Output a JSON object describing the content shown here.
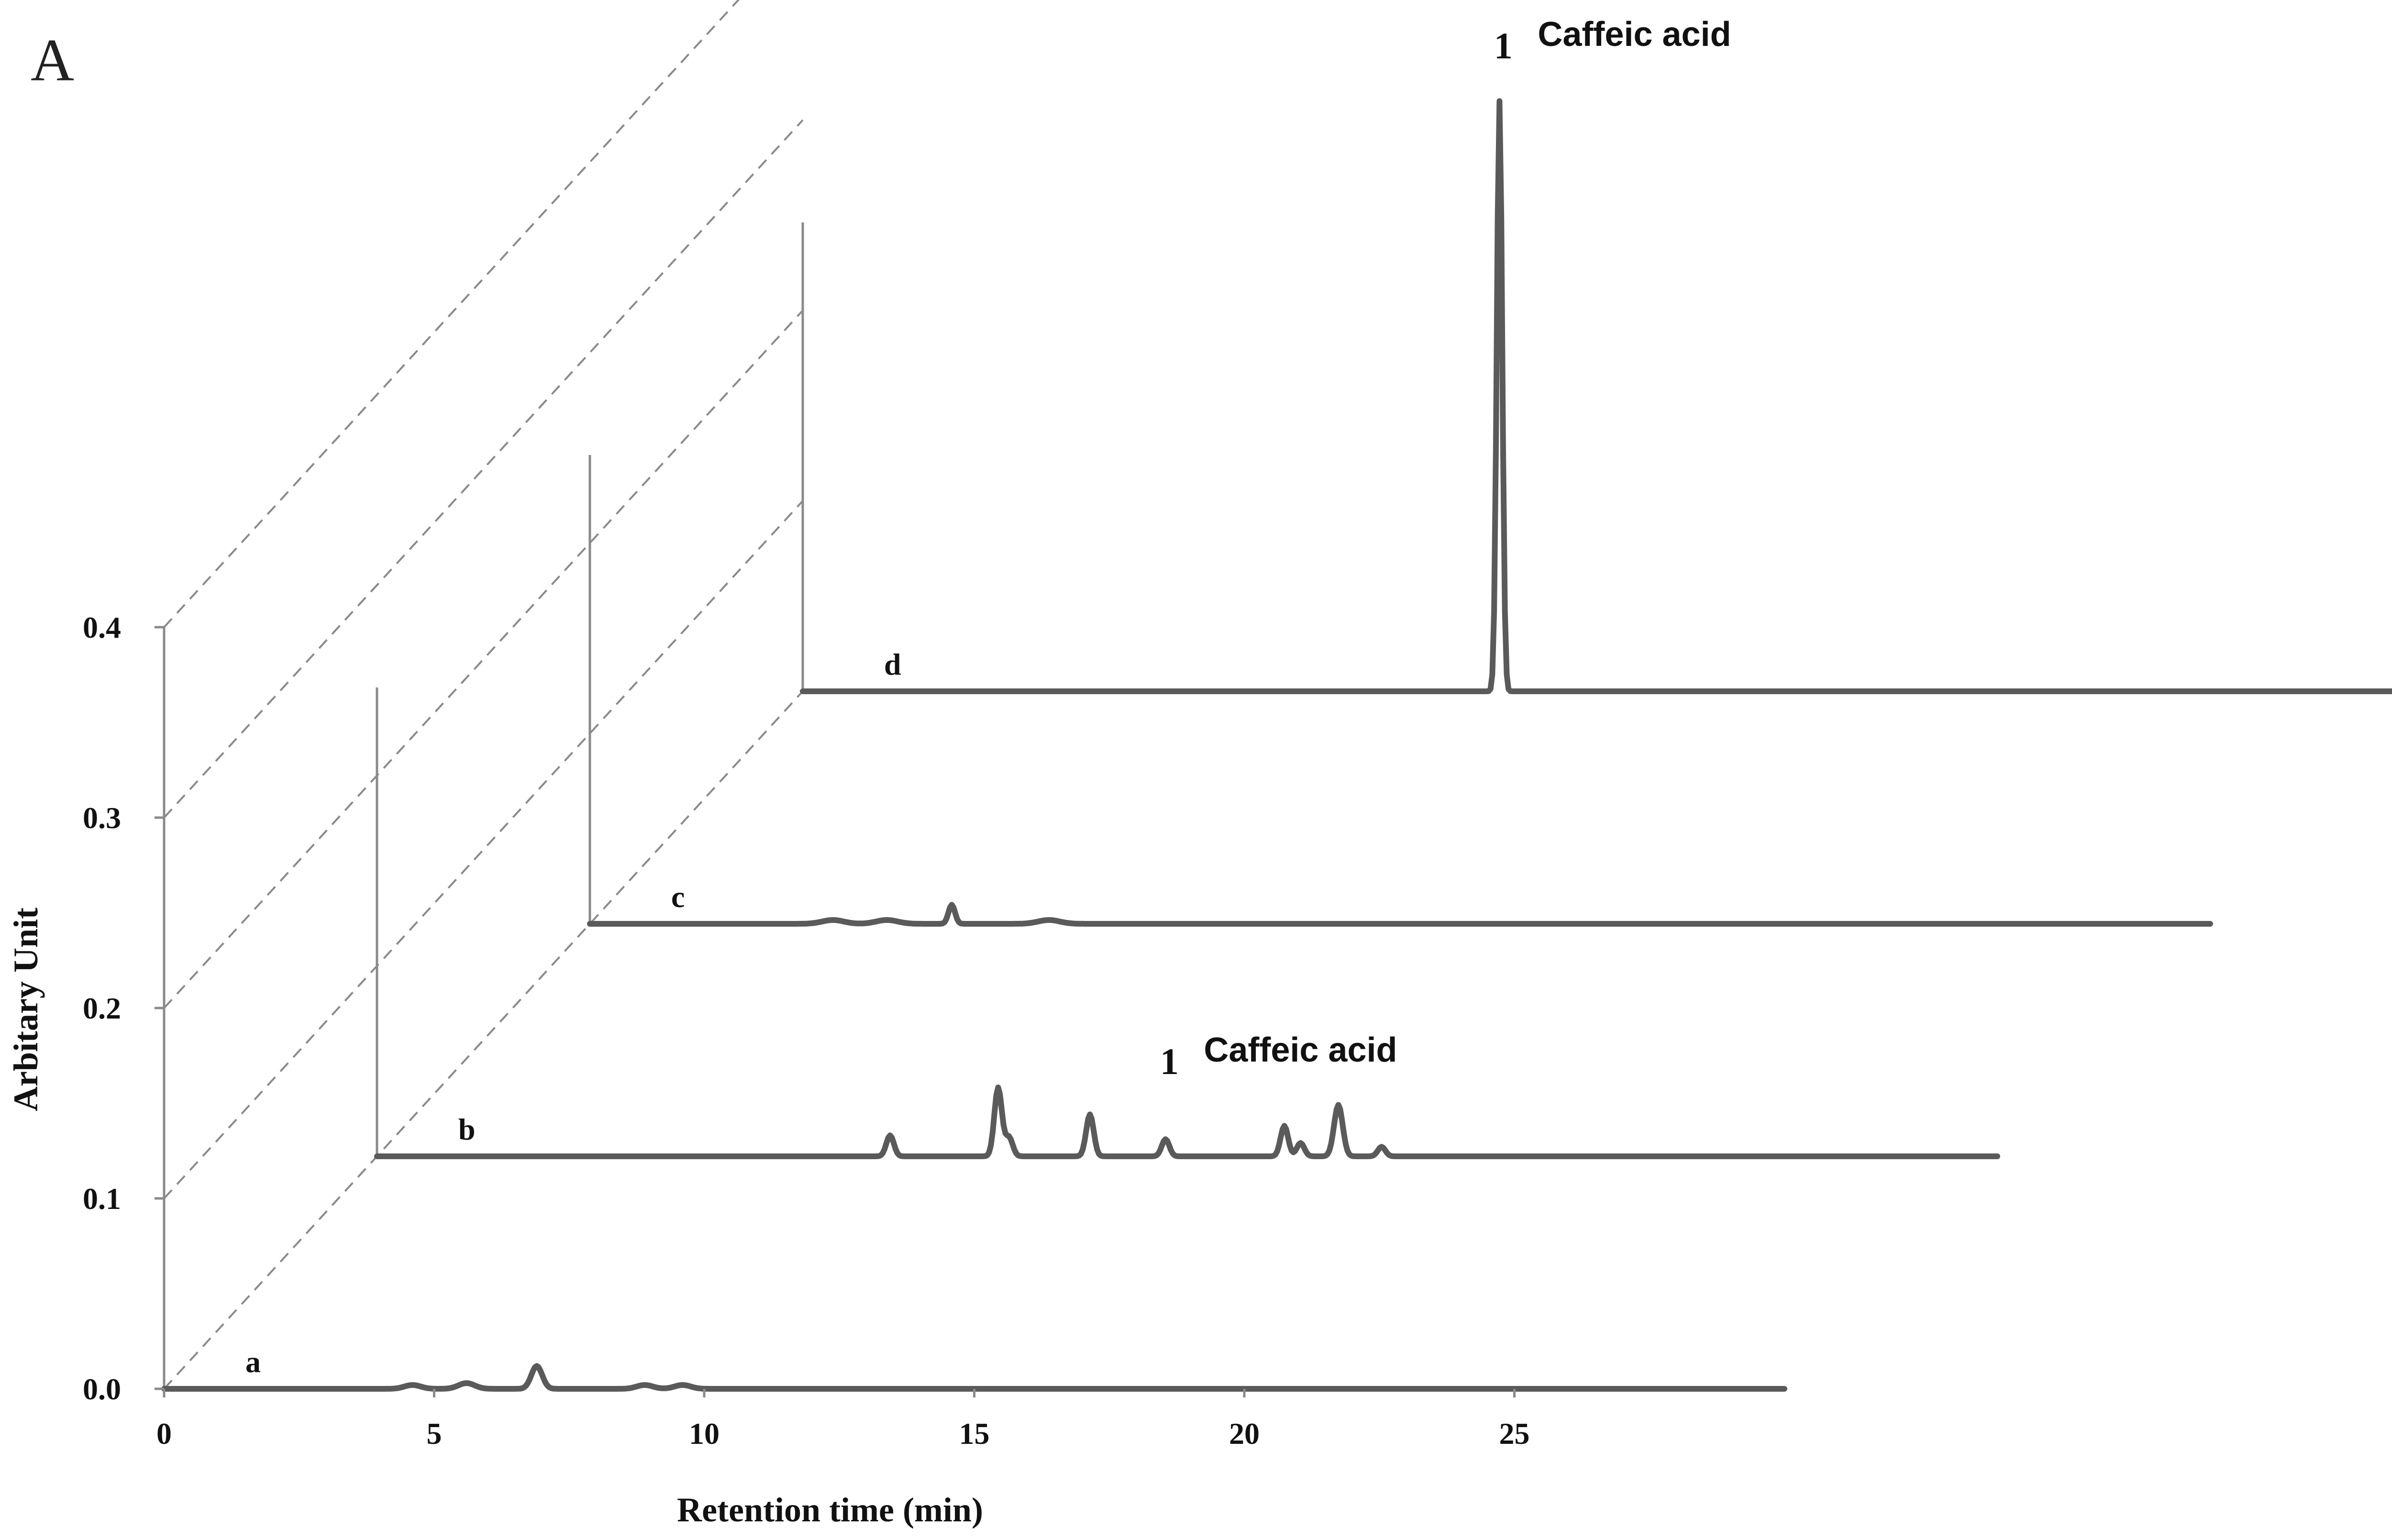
{
  "panel_label": "A",
  "chart_data": {
    "type": "line",
    "xlabel": "Retention time (min)",
    "ylabel": "Arbitary Unit",
    "x_ticks": [
      0,
      5,
      10,
      15,
      20,
      25
    ],
    "y_ticks": [
      "0.0",
      "0.1",
      "0.2",
      "0.3",
      "0.4"
    ],
    "xlim": [
      0,
      30
    ],
    "ylim": [
      0,
      0.4
    ],
    "trace_offset_x_min": [
      0,
      4.3,
      8.6,
      12.9
    ],
    "trace_offset_y": [
      0,
      0.122,
      0.24,
      0.362
    ],
    "series": [
      {
        "name": "a",
        "x_end": 30,
        "peaks": [
          [
            4.6,
            0.002,
            0.15
          ],
          [
            5.6,
            0.003,
            0.15
          ],
          [
            6.9,
            0.012,
            0.1
          ],
          [
            8.9,
            0.002,
            0.15
          ],
          [
            9.6,
            0.002,
            0.15
          ]
        ]
      },
      {
        "name": "b",
        "x_end": 30,
        "peaks": [
          [
            9.5,
            0.011,
            0.07
          ],
          [
            11.5,
            0.036,
            0.07
          ],
          [
            11.7,
            0.01,
            0.07
          ],
          [
            13.2,
            0.022,
            0.07
          ],
          [
            14.6,
            0.009,
            0.07
          ],
          [
            16.8,
            0.016,
            0.07
          ],
          [
            17.1,
            0.007,
            0.07
          ],
          [
            17.8,
            0.027,
            0.08
          ],
          [
            18.6,
            0.005,
            0.07
          ]
        ]
      },
      {
        "name": "c",
        "x_end": 30,
        "peaks": [
          [
            4.5,
            0.002,
            0.2
          ],
          [
            5.5,
            0.002,
            0.2
          ],
          [
            6.7,
            0.01,
            0.06
          ],
          [
            8.5,
            0.002,
            0.2
          ]
        ]
      },
      {
        "name": "d",
        "x_end": 30,
        "peaks": [
          [
            12.9,
            0.31,
            0.05
          ]
        ]
      }
    ],
    "annotations": [
      {
        "number": "1",
        "text": "Caffeic acid",
        "series": "b"
      },
      {
        "number": "1",
        "text": "Caffeic acid",
        "series": "d"
      }
    ]
  }
}
